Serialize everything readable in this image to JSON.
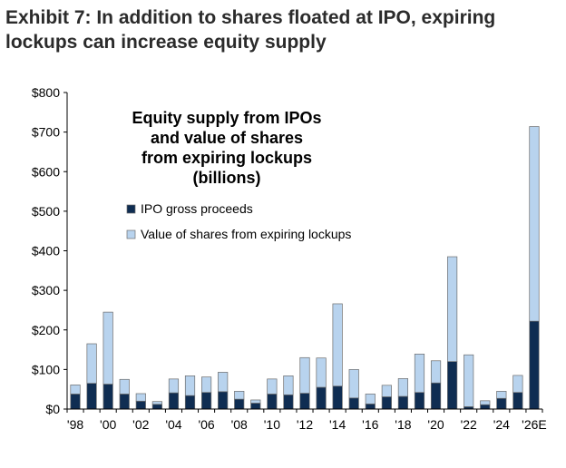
{
  "exhibit_title": "Exhibit 7: In addition to shares floated at IPO, expiring lockups can increase equity supply",
  "chart_data": {
    "type": "bar",
    "stacked": true,
    "title_lines": [
      "Equity supply from IPOs",
      "and value of shares",
      "from expiring lockups",
      "(billions)"
    ],
    "categories": [
      "'98",
      "'99",
      "'00",
      "'01",
      "'02",
      "'03",
      "'04",
      "'05",
      "'06",
      "'07",
      "'08",
      "'09",
      "'10",
      "'11",
      "'12",
      "'13",
      "'14",
      "'15",
      "'16",
      "'17",
      "'18",
      "'19",
      "'20",
      "'21",
      "'22",
      "'23",
      "'24",
      "'25",
      "'26E"
    ],
    "x_tick_labels": [
      "'98",
      "'00",
      "'02",
      "'04",
      "'06",
      "'08",
      "'10",
      "'12",
      "'14",
      "'16",
      "'18",
      "'20",
      "'22",
      "'24",
      "'26E"
    ],
    "series": [
      {
        "name": "IPO gross proceeds",
        "color": "#0f2d52",
        "values": [
          38,
          65,
          63,
          38,
          20,
          12,
          41,
          34,
          42,
          44,
          25,
          15,
          38,
          36,
          40,
          55,
          58,
          28,
          13,
          31,
          32,
          42,
          66,
          120,
          6,
          11,
          27,
          42,
          222
        ]
      },
      {
        "name": "Value of shares from expiring lockups",
        "color": "#b8d3ee",
        "values": [
          23,
          100,
          182,
          37,
          19,
          7,
          35,
          50,
          39,
          49,
          20,
          8,
          38,
          48,
          90,
          74,
          208,
          72,
          25,
          29,
          45,
          97,
          56,
          265,
          131,
          10,
          18,
          43,
          492
        ]
      }
    ],
    "y_ticks": [
      0,
      100,
      200,
      300,
      400,
      500,
      600,
      700,
      800
    ],
    "y_tick_labels": [
      "$0",
      "$100",
      "$200",
      "$300",
      "$400",
      "$500",
      "$600",
      "$700",
      "$800"
    ],
    "ylim": [
      0,
      800
    ],
    "grid": false,
    "legend_position": "top-left"
  }
}
